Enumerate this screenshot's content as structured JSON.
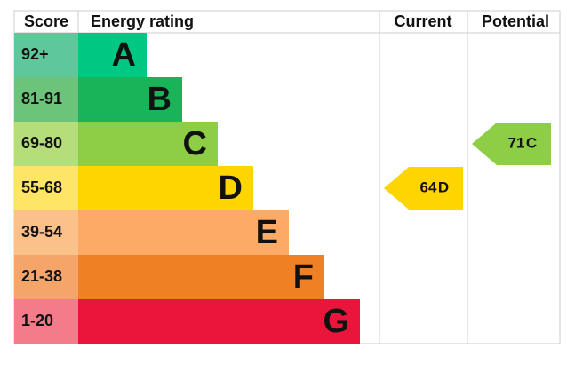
{
  "headers": {
    "score": "Score",
    "rating": "Energy rating",
    "current": "Current",
    "potential": "Potential"
  },
  "bands": [
    {
      "score": "92+",
      "letter": "A",
      "score_color": "#5ec89a",
      "color": "#00c781"
    },
    {
      "score": "81-91",
      "letter": "B",
      "score_color": "#6cc47a",
      "color": "#19b459"
    },
    {
      "score": "69-80",
      "letter": "C",
      "score_color": "#b5dd7a",
      "color": "#8dce46"
    },
    {
      "score": "55-68",
      "letter": "D",
      "score_color": "#ffe566",
      "color": "#ffd500"
    },
    {
      "score": "39-54",
      "letter": "E",
      "score_color": "#fcc08a",
      "color": "#fcaa65"
    },
    {
      "score": "21-38",
      "letter": "F",
      "score_color": "#f5a46a",
      "color": "#ef8023"
    },
    {
      "score": "1-20",
      "letter": "G",
      "score_color": "#f47c8a",
      "color": "#e9153b"
    }
  ],
  "current": {
    "value": 64,
    "letter": "D"
  },
  "potential": {
    "value": 71,
    "letter": "C"
  }
}
